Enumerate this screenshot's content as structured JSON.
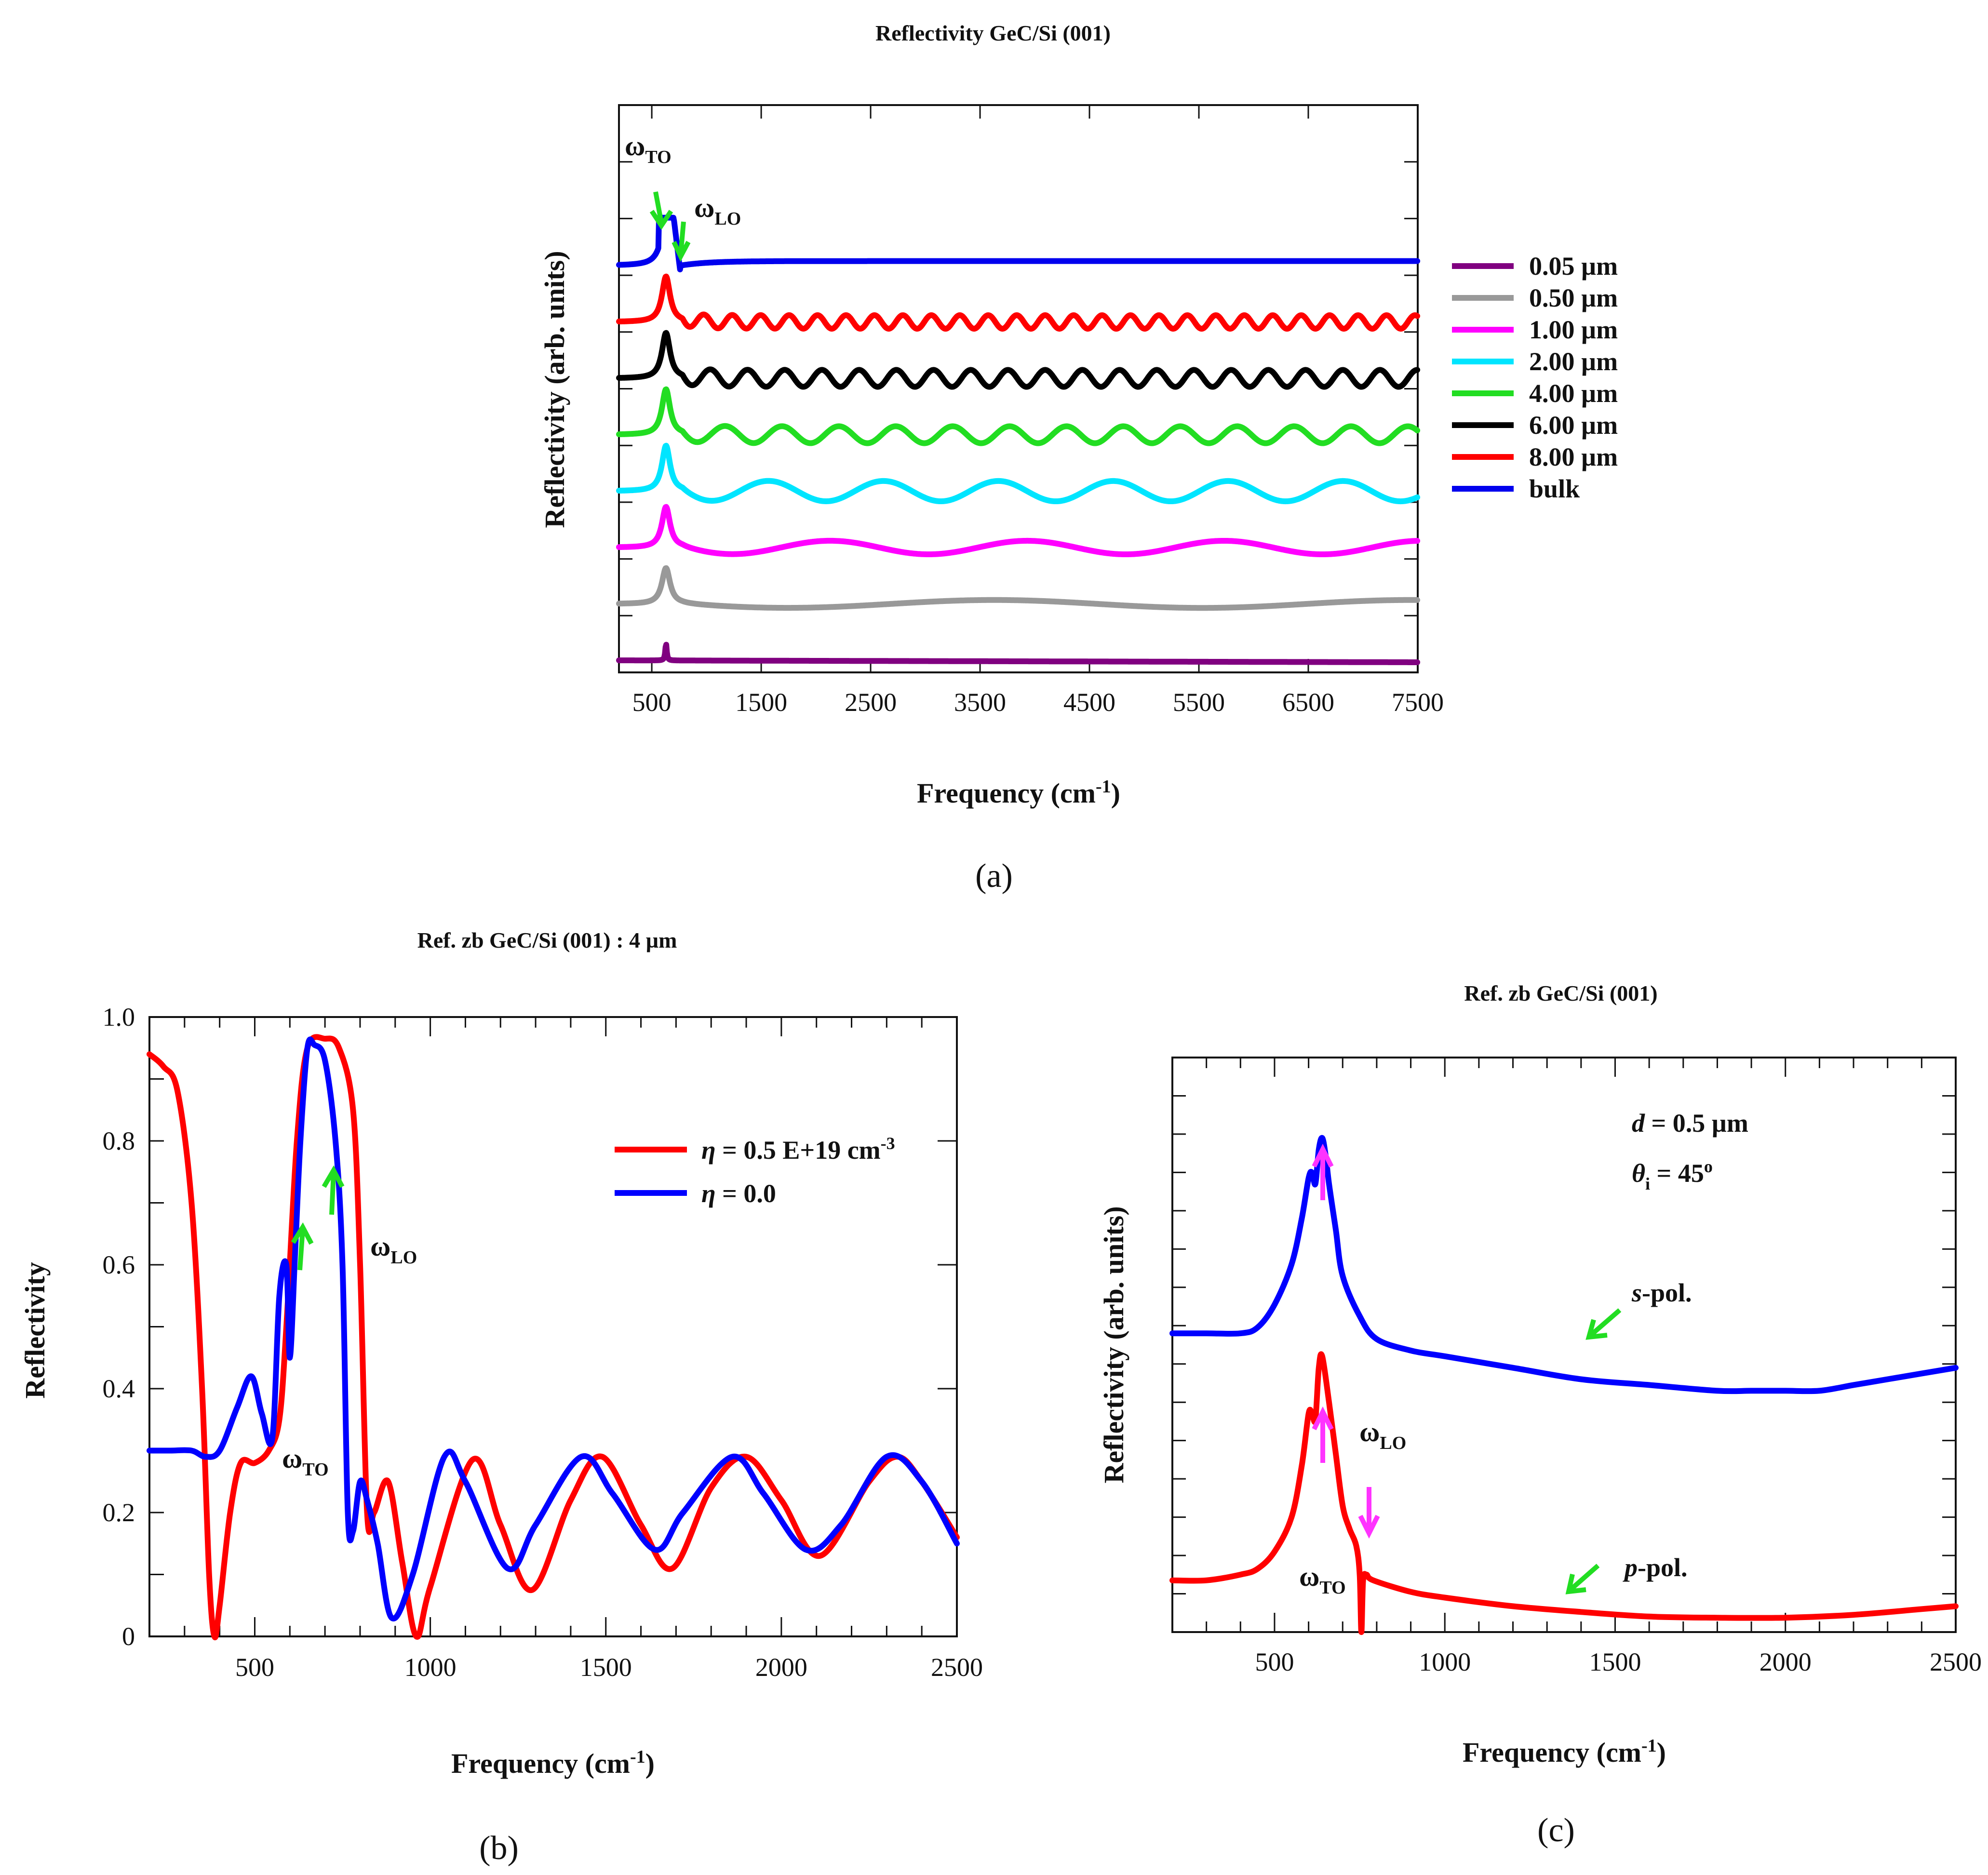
{
  "figure": {
    "captions": [
      "(a)",
      "(b)",
      "(c)"
    ]
  },
  "chart_data": [
    {
      "id": "a",
      "type": "line",
      "title": "Reflectivity GeC/Si (001)",
      "xlabel": "Frequency (cm-1)",
      "ylabel": "Reflectivity (arb. units)",
      "xlim": [
        200,
        7500
      ],
      "xticks": [
        500,
        1500,
        2500,
        3500,
        4500,
        5500,
        6500,
        7500
      ],
      "y_units": "arbitrary (curves vertically offset)",
      "annotations": [
        {
          "label": "ωTO",
          "x": 590
        },
        {
          "label": "ωLO",
          "x": 760
        }
      ],
      "series": [
        {
          "name": "0.05 µm",
          "color": "#800080",
          "baseline": 0.0,
          "peak_x": 630,
          "peak": 0.35,
          "oscillation_amp": 0.0
        },
        {
          "name": "0.50 µm",
          "color": "#999999",
          "baseline": 1.0,
          "peak_x": 630,
          "peak": 0.75,
          "oscillation_amp": 0.07
        },
        {
          "name": "1.00 µm",
          "color": "#ff00ff",
          "baseline": 2.0,
          "peak_x": 630,
          "peak": 0.85,
          "oscillation_amp": 0.12
        },
        {
          "name": "2.00 µm",
          "color": "#00e5ff",
          "baseline": 3.0,
          "peak_x": 630,
          "peak": 0.95,
          "oscillation_amp": 0.18
        },
        {
          "name": "4.00 µm",
          "color": "#22dd22",
          "baseline": 4.0,
          "peak_x": 630,
          "peak": 0.95,
          "oscillation_amp": 0.15
        },
        {
          "name": "6.00 µm",
          "color": "#000000",
          "baseline": 5.0,
          "peak_x": 630,
          "peak": 0.95,
          "oscillation_amp": 0.15
        },
        {
          "name": "8.00 µm",
          "color": "#ff0000",
          "baseline": 6.0,
          "peak_x": 630,
          "peak": 0.95,
          "oscillation_amp": 0.12
        },
        {
          "name": "bulk",
          "color": "#0000ee",
          "baseline": 7.0,
          "peak_x": 630,
          "peak": 0.95,
          "oscillation_amp": 0.0
        }
      ]
    },
    {
      "id": "b",
      "type": "line",
      "title": "Ref. zb GeC/Si (001) : 4 µm",
      "xlabel": "Frequency (cm-1)",
      "ylabel": "Reflectivity",
      "xlim": [
        200,
        2500
      ],
      "ylim": [
        0,
        1.0
      ],
      "xticks": [
        500,
        1000,
        1500,
        2000,
        2500
      ],
      "yticks": [
        0,
        0.2,
        0.4,
        0.6,
        0.8,
        1.0
      ],
      "ytick_labels": [
        "0",
        "0.2",
        "0.4",
        "0.6",
        "0.8",
        "1.0"
      ],
      "annotations": [
        {
          "label": "ωTO",
          "x": 540,
          "y": 0.27
        },
        {
          "label": "ωLO",
          "x": 830,
          "y": 0.62
        }
      ],
      "series": [
        {
          "name": "η = 0.5 E+19 cm-3",
          "color": "#ff0000",
          "x": [
            200,
            240,
            280,
            320,
            350,
            370,
            385,
            400,
            430,
            460,
            500,
            540,
            570,
            590,
            620,
            650,
            700,
            740,
            780,
            800,
            820,
            840,
            880,
            920,
            960,
            1000,
            1120,
            1200,
            1290,
            1400,
            1490,
            1600,
            1690,
            1800,
            1900,
            2000,
            2110,
            2250,
            2330,
            2400,
            2500
          ],
          "y": [
            0.94,
            0.92,
            0.88,
            0.7,
            0.4,
            0.1,
            0.0,
            0.05,
            0.2,
            0.28,
            0.28,
            0.3,
            0.35,
            0.5,
            0.8,
            0.95,
            0.965,
            0.95,
            0.85,
            0.6,
            0.2,
            0.2,
            0.25,
            0.12,
            0.0,
            0.08,
            0.285,
            0.18,
            0.075,
            0.22,
            0.29,
            0.18,
            0.11,
            0.24,
            0.29,
            0.22,
            0.13,
            0.25,
            0.29,
            0.25,
            0.16
          ]
        },
        {
          "name": "η = 0.0",
          "color": "#0000ff",
          "x": [
            200,
            260,
            320,
            360,
            400,
            450,
            490,
            520,
            550,
            570,
            590,
            600,
            615,
            630,
            650,
            670,
            700,
            730,
            750,
            765,
            780,
            800,
            820,
            850,
            890,
            950,
            1040,
            1100,
            1220,
            1300,
            1430,
            1520,
            1640,
            1720,
            1860,
            1950,
            2070,
            2170,
            2300,
            2400,
            2500
          ],
          "y": [
            0.3,
            0.3,
            0.3,
            0.29,
            0.3,
            0.37,
            0.42,
            0.36,
            0.32,
            0.55,
            0.6,
            0.45,
            0.62,
            0.8,
            0.95,
            0.955,
            0.93,
            0.8,
            0.6,
            0.2,
            0.17,
            0.25,
            0.22,
            0.15,
            0.03,
            0.1,
            0.29,
            0.25,
            0.11,
            0.18,
            0.29,
            0.23,
            0.14,
            0.2,
            0.29,
            0.23,
            0.14,
            0.18,
            0.29,
            0.25,
            0.15
          ]
        }
      ]
    },
    {
      "id": "c",
      "type": "line",
      "title": "Ref. zb GeC/Si (001)",
      "xlabel": "Frequency (cm-1)",
      "ylabel": "Reflectivity (arb. units)",
      "xlim": [
        200,
        2500
      ],
      "xticks": [
        500,
        1000,
        1500,
        2000,
        2500
      ],
      "params": {
        "d": "d = 0.5 µm",
        "theta": "θi = 45°"
      },
      "annotations": [
        {
          "label": "ωLO",
          "x": 760
        },
        {
          "label": "ωTO",
          "x": 640
        }
      ],
      "series": [
        {
          "name": "s-pol.",
          "color": "#0000ff",
          "x": [
            200,
            300,
            400,
            450,
            500,
            550,
            580,
            600,
            610,
            620,
            630,
            640,
            650,
            660,
            680,
            700,
            750,
            800,
            900,
            1000,
            1200,
            1400,
            1600,
            1800,
            1900,
            2000,
            2100,
            2200,
            2300,
            2400,
            2500
          ],
          "y": [
            0.52,
            0.52,
            0.52,
            0.53,
            0.57,
            0.64,
            0.72,
            0.79,
            0.8,
            0.78,
            0.84,
            0.86,
            0.83,
            0.78,
            0.7,
            0.62,
            0.55,
            0.51,
            0.49,
            0.48,
            0.46,
            0.44,
            0.43,
            0.42,
            0.42,
            0.42,
            0.42,
            0.43,
            0.44,
            0.45,
            0.46
          ]
        },
        {
          "name": "p-pol.",
          "color": "#ff0000",
          "x": [
            200,
            300,
            400,
            450,
            500,
            550,
            580,
            600,
            610,
            620,
            630,
            640,
            660,
            680,
            700,
            720,
            740,
            750,
            755,
            760,
            770,
            790,
            900,
            1000,
            1200,
            1400,
            1600,
            1800,
            2000,
            2200,
            2400,
            2500
          ],
          "y": [
            0.09,
            0.09,
            0.1,
            0.11,
            0.14,
            0.2,
            0.29,
            0.38,
            0.38,
            0.37,
            0.46,
            0.48,
            0.4,
            0.31,
            0.22,
            0.18,
            0.15,
            0.1,
            0.0,
            0.09,
            0.1,
            0.09,
            0.07,
            0.06,
            0.045,
            0.035,
            0.027,
            0.025,
            0.025,
            0.03,
            0.04,
            0.045
          ]
        }
      ]
    }
  ]
}
